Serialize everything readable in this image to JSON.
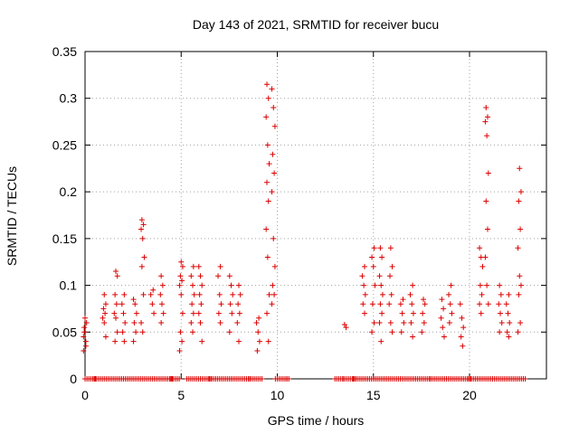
{
  "chart_data": {
    "type": "scatter",
    "title": "Day 143 of 2021, SRMTID for receiver bucu",
    "xlabel": "GPS time / hours",
    "ylabel": "SRMTID / TECUs",
    "xlim": [
      0,
      24
    ],
    "ylim": [
      0,
      0.35
    ],
    "xticks": [
      0,
      5,
      10,
      15,
      20
    ],
    "yticks": [
      0,
      0.05,
      0.1,
      0.15,
      0.2,
      0.25,
      0.3,
      0.35
    ],
    "grid": true,
    "legend": "none",
    "marker": "+",
    "series": [
      {
        "name": "SRMTID",
        "color": "#dd0000",
        "clusters": [
          {
            "x": 0.0,
            "y": [
              0.03,
              0.04,
              0.05,
              0.06,
              0.065,
              0.045,
              0.035,
              0.055
            ]
          },
          {
            "x": 0.5,
            "y": [
              0.0,
              0.0,
              0.0
            ]
          },
          {
            "x": 1.0,
            "y": [
              0.045,
              0.06,
              0.065,
              0.07,
              0.075,
              0.08,
              0.09
            ]
          },
          {
            "x": 1.6,
            "y": [
              0.04,
              0.05,
              0.065,
              0.07,
              0.08,
              0.09,
              0.11,
              0.115
            ]
          },
          {
            "x": 2.0,
            "y": [
              0.04,
              0.05,
              0.06,
              0.07,
              0.08,
              0.09
            ]
          },
          {
            "x": 2.6,
            "y": [
              0.04,
              0.05,
              0.06,
              0.07,
              0.08,
              0.085
            ]
          },
          {
            "x": 3.0,
            "y": [
              0.05,
              0.06,
              0.09,
              0.12,
              0.13,
              0.15,
              0.16,
              0.165,
              0.17
            ]
          },
          {
            "x": 3.5,
            "y": [
              0.07,
              0.08,
              0.09,
              0.095
            ]
          },
          {
            "x": 4.0,
            "y": [
              0.06,
              0.07,
              0.08,
              0.09,
              0.1,
              0.11
            ]
          },
          {
            "x": 4.5,
            "y": [
              0.0,
              0.0
            ]
          },
          {
            "x": 5.0,
            "y": [
              0.03,
              0.04,
              0.05,
              0.07,
              0.09,
              0.1,
              0.105,
              0.11,
              0.12,
              0.125
            ]
          },
          {
            "x": 5.6,
            "y": [
              0.05,
              0.06,
              0.07,
              0.08,
              0.09,
              0.1,
              0.11,
              0.12
            ]
          },
          {
            "x": 6.0,
            "y": [
              0.04,
              0.06,
              0.07,
              0.08,
              0.09,
              0.1,
              0.11,
              0.12
            ]
          },
          {
            "x": 6.5,
            "y": [
              0.0,
              0.0
            ]
          },
          {
            "x": 7.0,
            "y": [
              0.06,
              0.07,
              0.08,
              0.09,
              0.11,
              0.12
            ]
          },
          {
            "x": 7.6,
            "y": [
              0.05,
              0.07,
              0.08,
              0.09,
              0.1,
              0.11
            ]
          },
          {
            "x": 8.0,
            "y": [
              0.04,
              0.06,
              0.07,
              0.08,
              0.09,
              0.1
            ]
          },
          {
            "x": 8.5,
            "y": [
              0.0,
              0.0
            ]
          },
          {
            "x": 9.0,
            "y": [
              0.03,
              0.04,
              0.05,
              0.06,
              0.065
            ]
          },
          {
            "x": 9.5,
            "y": [
              0.04,
              0.07,
              0.09,
              0.13,
              0.16,
              0.19,
              0.21,
              0.23,
              0.25,
              0.28,
              0.3,
              0.315
            ]
          },
          {
            "x": 9.8,
            "y": [
              0.08,
              0.09,
              0.1,
              0.12,
              0.15,
              0.2,
              0.22,
              0.24,
              0.27,
              0.29,
              0.31
            ]
          },
          {
            "x": 10.5,
            "y": [
              0.0
            ]
          },
          {
            "x": 13.5,
            "y": [
              0.055,
              0.058,
              0.0
            ]
          },
          {
            "x": 14.0,
            "y": [
              0.0,
              0.0
            ]
          },
          {
            "x": 14.5,
            "y": [
              0.07,
              0.08,
              0.09,
              0.1,
              0.11,
              0.12
            ]
          },
          {
            "x": 15.0,
            "y": [
              0.05,
              0.06,
              0.08,
              0.1,
              0.12,
              0.13,
              0.14
            ]
          },
          {
            "x": 15.4,
            "y": [
              0.04,
              0.06,
              0.07,
              0.08,
              0.09,
              0.1,
              0.11,
              0.13,
              0.14
            ]
          },
          {
            "x": 15.9,
            "y": [
              0.05,
              0.06,
              0.08,
              0.09,
              0.11,
              0.12,
              0.14
            ]
          },
          {
            "x": 16.5,
            "y": [
              0.05,
              0.06,
              0.07,
              0.08,
              0.085
            ]
          },
          {
            "x": 17.0,
            "y": [
              0.045,
              0.06,
              0.07,
              0.08,
              0.09,
              0.1
            ]
          },
          {
            "x": 17.6,
            "y": [
              0.05,
              0.06,
              0.07,
              0.08,
              0.085
            ]
          },
          {
            "x": 18.0,
            "y": [
              0.0,
              0.0
            ]
          },
          {
            "x": 18.6,
            "y": [
              0.045,
              0.055,
              0.065,
              0.075,
              0.085
            ]
          },
          {
            "x": 19.0,
            "y": [
              0.06,
              0.07,
              0.08,
              0.09,
              0.1
            ]
          },
          {
            "x": 19.6,
            "y": [
              0.035,
              0.045,
              0.055,
              0.065,
              0.08
            ]
          },
          {
            "x": 20.0,
            "y": [
              0.0,
              0.0
            ]
          },
          {
            "x": 20.6,
            "y": [
              0.07,
              0.08,
              0.09,
              0.1,
              0.12,
              0.13,
              0.14
            ]
          },
          {
            "x": 20.9,
            "y": [
              0.08,
              0.1,
              0.13,
              0.16,
              0.19,
              0.22,
              0.26,
              0.275,
              0.28,
              0.29
            ]
          },
          {
            "x": 21.6,
            "y": [
              0.05,
              0.06,
              0.07,
              0.08,
              0.09,
              0.1
            ]
          },
          {
            "x": 22.0,
            "y": [
              0.045,
              0.05,
              0.06,
              0.07,
              0.08,
              0.09
            ]
          },
          {
            "x": 22.6,
            "y": [
              0.05,
              0.06,
              0.09,
              0.1,
              0.11,
              0.14,
              0.16,
              0.19,
              0.2,
              0.225
            ]
          }
        ],
        "zero_segments": [
          [
            0.0,
            4.9
          ],
          [
            5.3,
            9.2
          ],
          [
            9.9,
            10.6
          ],
          [
            13.0,
            22.9
          ]
        ]
      }
    ]
  }
}
